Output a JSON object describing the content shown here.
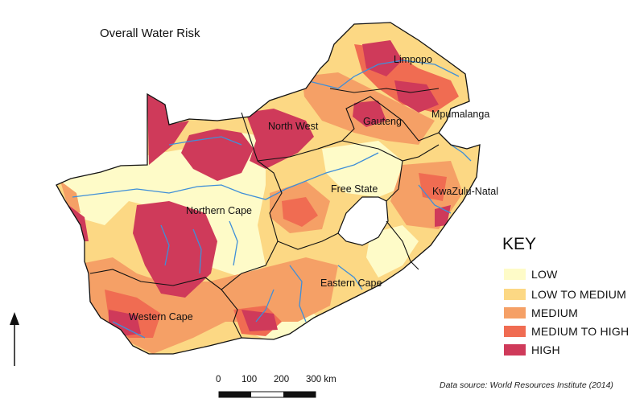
{
  "title": "Overall Water Risk",
  "provinces": [
    {
      "id": "limpopo",
      "name": "Limpopo"
    },
    {
      "id": "north-west",
      "name": "North West"
    },
    {
      "id": "gauteng",
      "name": "Gauteng"
    },
    {
      "id": "mpumalanga",
      "name": "Mpumalanga"
    },
    {
      "id": "free-state",
      "name": "Free State"
    },
    {
      "id": "kwazulu-natal",
      "name": "KwaZulu-Natal"
    },
    {
      "id": "northern-cape",
      "name": "Northern Cape"
    },
    {
      "id": "eastern-cape",
      "name": "Eastern Cape"
    },
    {
      "id": "western-cape",
      "name": "Western Cape"
    }
  ],
  "key": {
    "title": "KEY",
    "items": [
      {
        "label": "LOW",
        "color": "#fefbc8"
      },
      {
        "label": "LOW TO MEDIUM",
        "color": "#fcd884"
      },
      {
        "label": "MEDIUM",
        "color": "#f5a066"
      },
      {
        "label": "MEDIUM TO HIGH",
        "color": "#f06c52"
      },
      {
        "label": "HIGH",
        "color": "#cf3a5a"
      }
    ]
  },
  "scale_bar": {
    "labels": [
      "0",
      "100",
      "200",
      "300 km"
    ]
  },
  "source": "Data source: World Resources Institute (2014)",
  "colors": {
    "border": "#111111",
    "river": "#3f8fd8",
    "lesotho": "#ffffff"
  }
}
